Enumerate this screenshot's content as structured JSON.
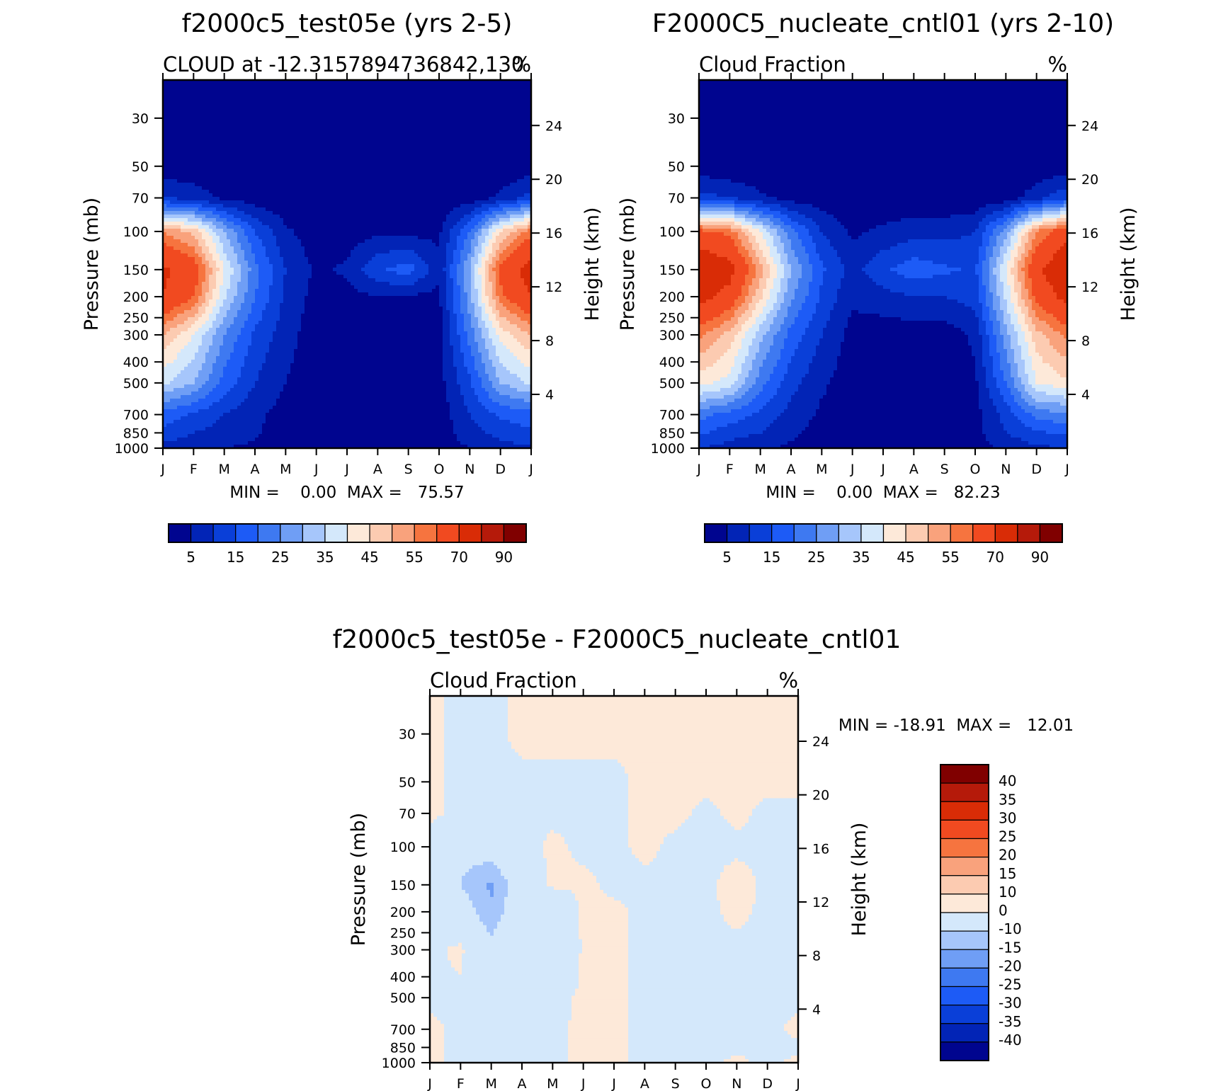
{
  "chart_data": [
    {
      "type": "heatmap",
      "id": "p1",
      "title": "f2000c5_test05e (yrs 2-5)",
      "subtitle_left": "CLOUD at -12.3157894736842,130",
      "subtitle_right": "%",
      "ylabel_left": "Pressure (mb)",
      "ylabel_right": "Height (km)",
      "x_ticks": [
        "J",
        "F",
        "M",
        "A",
        "M",
        "J",
        "J",
        "A",
        "S",
        "O",
        "N",
        "D",
        "J"
      ],
      "pressure_ticks": [
        30,
        50,
        70,
        100,
        150,
        200,
        250,
        300,
        400,
        500,
        700,
        850,
        1000
      ],
      "height_ticks": [
        4,
        8,
        12,
        16,
        20,
        24
      ],
      "ylim_mb": [
        20,
        1000
      ],
      "stats": {
        "min": "0.00",
        "max": "75.57"
      },
      "min_text": "MIN =    0.00  MAX =   75.57",
      "colorbar_labels": [
        "5",
        "15",
        "25",
        "35",
        "45",
        "55",
        "70",
        "90"
      ],
      "colorbar_colors": [
        "#00058f",
        "#0224b6",
        "#0a3fd8",
        "#1d5bf6",
        "#3e79f1",
        "#6f9ef5",
        "#a6c6fb",
        "#d4e8fb",
        "#fde9d9",
        "#fccbb1",
        "#f9a27c",
        "#f6743f",
        "#f14a20",
        "#d92c06",
        "#b51a0a",
        "#800000"
      ],
      "contour_field": {
        "desc": "approx values (%) per pressure level x month",
        "levels_mb": [
          30,
          50,
          70,
          100,
          150,
          200,
          300,
          500,
          700,
          850,
          1000
        ],
        "months": [
          "J",
          "F",
          "M",
          "A",
          "M",
          "J",
          "J",
          "A",
          "S",
          "O",
          "N",
          "D",
          "J"
        ],
        "values": [
          [
            1,
            1,
            1,
            1,
            1,
            1,
            1,
            1,
            1,
            1,
            1,
            1,
            1
          ],
          [
            2,
            1,
            1,
            1,
            1,
            1,
            1,
            1,
            1,
            1,
            1,
            1,
            2
          ],
          [
            10,
            8,
            4,
            2,
            1,
            1,
            1,
            1,
            1,
            1,
            2,
            6,
            12
          ],
          [
            55,
            48,
            30,
            15,
            6,
            2,
            2,
            4,
            3,
            4,
            20,
            45,
            58
          ],
          [
            72,
            65,
            40,
            22,
            10,
            4,
            6,
            14,
            18,
            6,
            30,
            62,
            75
          ],
          [
            70,
            60,
            36,
            20,
            9,
            3,
            3,
            5,
            4,
            4,
            28,
            58,
            70
          ],
          [
            50,
            40,
            25,
            14,
            7,
            2,
            2,
            2,
            2,
            3,
            22,
            42,
            50
          ],
          [
            36,
            30,
            18,
            10,
            5,
            2,
            2,
            2,
            2,
            3,
            14,
            30,
            36
          ],
          [
            18,
            14,
            10,
            6,
            3,
            1,
            1,
            1,
            1,
            2,
            10,
            16,
            18
          ],
          [
            14,
            10,
            8,
            6,
            2,
            1,
            1,
            1,
            1,
            2,
            8,
            12,
            14
          ],
          [
            8,
            6,
            5,
            4,
            2,
            1,
            1,
            1,
            1,
            2,
            5,
            8,
            9
          ]
        ]
      }
    },
    {
      "type": "heatmap",
      "id": "p2",
      "title": "F2000C5_nucleate_cntl01 (yrs 2-10)",
      "subtitle_left": "Cloud Fraction",
      "subtitle_right": "%",
      "ylabel_left": "Pressure (mb)",
      "ylabel_right": "Height (km)",
      "x_ticks": [
        "J",
        "F",
        "M",
        "A",
        "M",
        "J",
        "J",
        "A",
        "S",
        "O",
        "N",
        "D",
        "J"
      ],
      "pressure_ticks": [
        30,
        50,
        70,
        100,
        150,
        200,
        250,
        300,
        400,
        500,
        700,
        850,
        1000
      ],
      "height_ticks": [
        4,
        8,
        12,
        16,
        20,
        24
      ],
      "ylim_mb": [
        20,
        1000
      ],
      "stats": {
        "min": "0.00",
        "max": "82.23"
      },
      "min_text": "MIN =    0.00  MAX =   82.23",
      "colorbar_labels": [
        "5",
        "15",
        "25",
        "35",
        "45",
        "55",
        "70",
        "90"
      ],
      "colorbar_colors": [
        "#00058f",
        "#0224b6",
        "#0a3fd8",
        "#1d5bf6",
        "#3e79f1",
        "#6f9ef5",
        "#a6c6fb",
        "#d4e8fb",
        "#fde9d9",
        "#fccbb1",
        "#f9a27c",
        "#f6743f",
        "#f14a20",
        "#d92c06",
        "#b51a0a",
        "#800000"
      ],
      "contour_field": {
        "desc": "approx values (%) per pressure level x month",
        "levels_mb": [
          30,
          50,
          70,
          100,
          150,
          200,
          300,
          500,
          700,
          850,
          1000
        ],
        "months": [
          "J",
          "F",
          "M",
          "A",
          "M",
          "J",
          "J",
          "A",
          "S",
          "O",
          "N",
          "D",
          "J"
        ],
        "values": [
          [
            1,
            1,
            1,
            1,
            1,
            1,
            1,
            1,
            1,
            1,
            1,
            1,
            1
          ],
          [
            2,
            1,
            1,
            1,
            1,
            1,
            1,
            1,
            1,
            1,
            1,
            1,
            2
          ],
          [
            12,
            10,
            6,
            3,
            2,
            1,
            1,
            1,
            1,
            1,
            2,
            8,
            14
          ],
          [
            62,
            58,
            40,
            22,
            10,
            4,
            6,
            8,
            8,
            10,
            28,
            55,
            66
          ],
          [
            80,
            74,
            52,
            30,
            16,
            8,
            14,
            18,
            16,
            14,
            40,
            68,
            80
          ],
          [
            74,
            66,
            46,
            26,
            14,
            6,
            8,
            10,
            10,
            12,
            36,
            62,
            74
          ],
          [
            56,
            48,
            32,
            18,
            10,
            3,
            2,
            2,
            2,
            6,
            28,
            48,
            56
          ],
          [
            42,
            38,
            22,
            12,
            6,
            2,
            2,
            2,
            2,
            4,
            20,
            40,
            44
          ],
          [
            22,
            18,
            14,
            8,
            4,
            2,
            2,
            2,
            2,
            3,
            12,
            22,
            24
          ],
          [
            16,
            12,
            10,
            6,
            3,
            2,
            2,
            2,
            2,
            3,
            10,
            14,
            16
          ],
          [
            10,
            8,
            6,
            4,
            3,
            2,
            2,
            2,
            2,
            3,
            6,
            9,
            10
          ]
        ]
      }
    },
    {
      "type": "heatmap",
      "id": "p3",
      "title": "f2000c5_test05e - F2000C5_nucleate_cntl01",
      "subtitle_left": "Cloud Fraction",
      "subtitle_right": "%",
      "ylabel_left": "Pressure (mb)",
      "ylabel_right": "Height (km)",
      "x_ticks": [
        "J",
        "F",
        "M",
        "A",
        "M",
        "J",
        "J",
        "A",
        "S",
        "O",
        "N",
        "D",
        "J"
      ],
      "pressure_ticks": [
        30,
        50,
        70,
        100,
        150,
        200,
        250,
        300,
        400,
        500,
        700,
        850,
        1000
      ],
      "height_ticks": [
        4,
        8,
        12,
        16,
        20,
        24
      ],
      "ylim_mb": [
        20,
        1000
      ],
      "stats": {
        "min": "-18.91",
        "max": "12.01"
      },
      "min_text": "MIN = -18.91  MAX =   12.01",
      "colorbar_labels": [
        "40",
        "35",
        "30",
        "25",
        "20",
        "15",
        "10",
        "0",
        "-10",
        "-15",
        "-20",
        "-25",
        "-30",
        "-35",
        "-40"
      ],
      "colorbar_colors": [
        "#800000",
        "#b51a0a",
        "#d92c06",
        "#f14a20",
        "#f6743f",
        "#f9a27c",
        "#fccbb1",
        "#fde9d9",
        "#d4e8fb",
        "#a6c6fb",
        "#6f9ef5",
        "#3e79f1",
        "#1d5bf6",
        "#0a3fd8",
        "#0224b6",
        "#00058f"
      ],
      "contour_field": {
        "desc": "approx difference (%) per pressure level x month",
        "levels_mb": [
          30,
          50,
          70,
          100,
          150,
          200,
          300,
          500,
          700,
          850,
          1000
        ],
        "months": [
          "J",
          "F",
          "M",
          "A",
          "M",
          "J",
          "J",
          "A",
          "S",
          "O",
          "N",
          "D",
          "J"
        ],
        "values": [
          [
            1,
            -1,
            -1,
            1,
            1,
            1,
            1,
            1,
            1,
            1,
            1,
            1,
            1
          ],
          [
            1,
            -1,
            -1,
            -1,
            -1,
            -1,
            -1,
            1,
            1,
            1,
            1,
            1,
            1
          ],
          [
            1,
            -1,
            -1,
            -1,
            -1,
            -1,
            -1,
            1,
            1,
            -1,
            1,
            -1,
            -1
          ],
          [
            -2,
            -8,
            -6,
            -2,
            1,
            -1,
            -1,
            1,
            -1,
            -1,
            -1,
            -1,
            -1
          ],
          [
            -2,
            -10,
            -16,
            -5,
            1,
            1,
            -1,
            -1,
            -1,
            -1,
            2,
            -1,
            -1
          ],
          [
            -1,
            -6,
            -14,
            -4,
            -8,
            1,
            1,
            -1,
            -1,
            -1,
            1,
            -1,
            -1
          ],
          [
            -1,
            1,
            -8,
            -2,
            -10,
            1,
            1,
            -1,
            -1,
            -1,
            -1,
            -1,
            -1
          ],
          [
            -1,
            -1,
            -4,
            -1,
            -2,
            1,
            1,
            -1,
            -1,
            -1,
            -1,
            -1,
            -1
          ],
          [
            1,
            -1,
            -1,
            -1,
            -1,
            1,
            1,
            -1,
            -1,
            -1,
            -1,
            -1,
            1
          ],
          [
            1,
            -1,
            -1,
            -1,
            -1,
            1,
            1,
            -1,
            -1,
            -1,
            -1,
            -1,
            -1
          ],
          [
            1,
            -1,
            -1,
            -1,
            -1,
            1,
            1,
            -1,
            -1,
            -1,
            1,
            -1,
            1
          ]
        ]
      }
    }
  ]
}
